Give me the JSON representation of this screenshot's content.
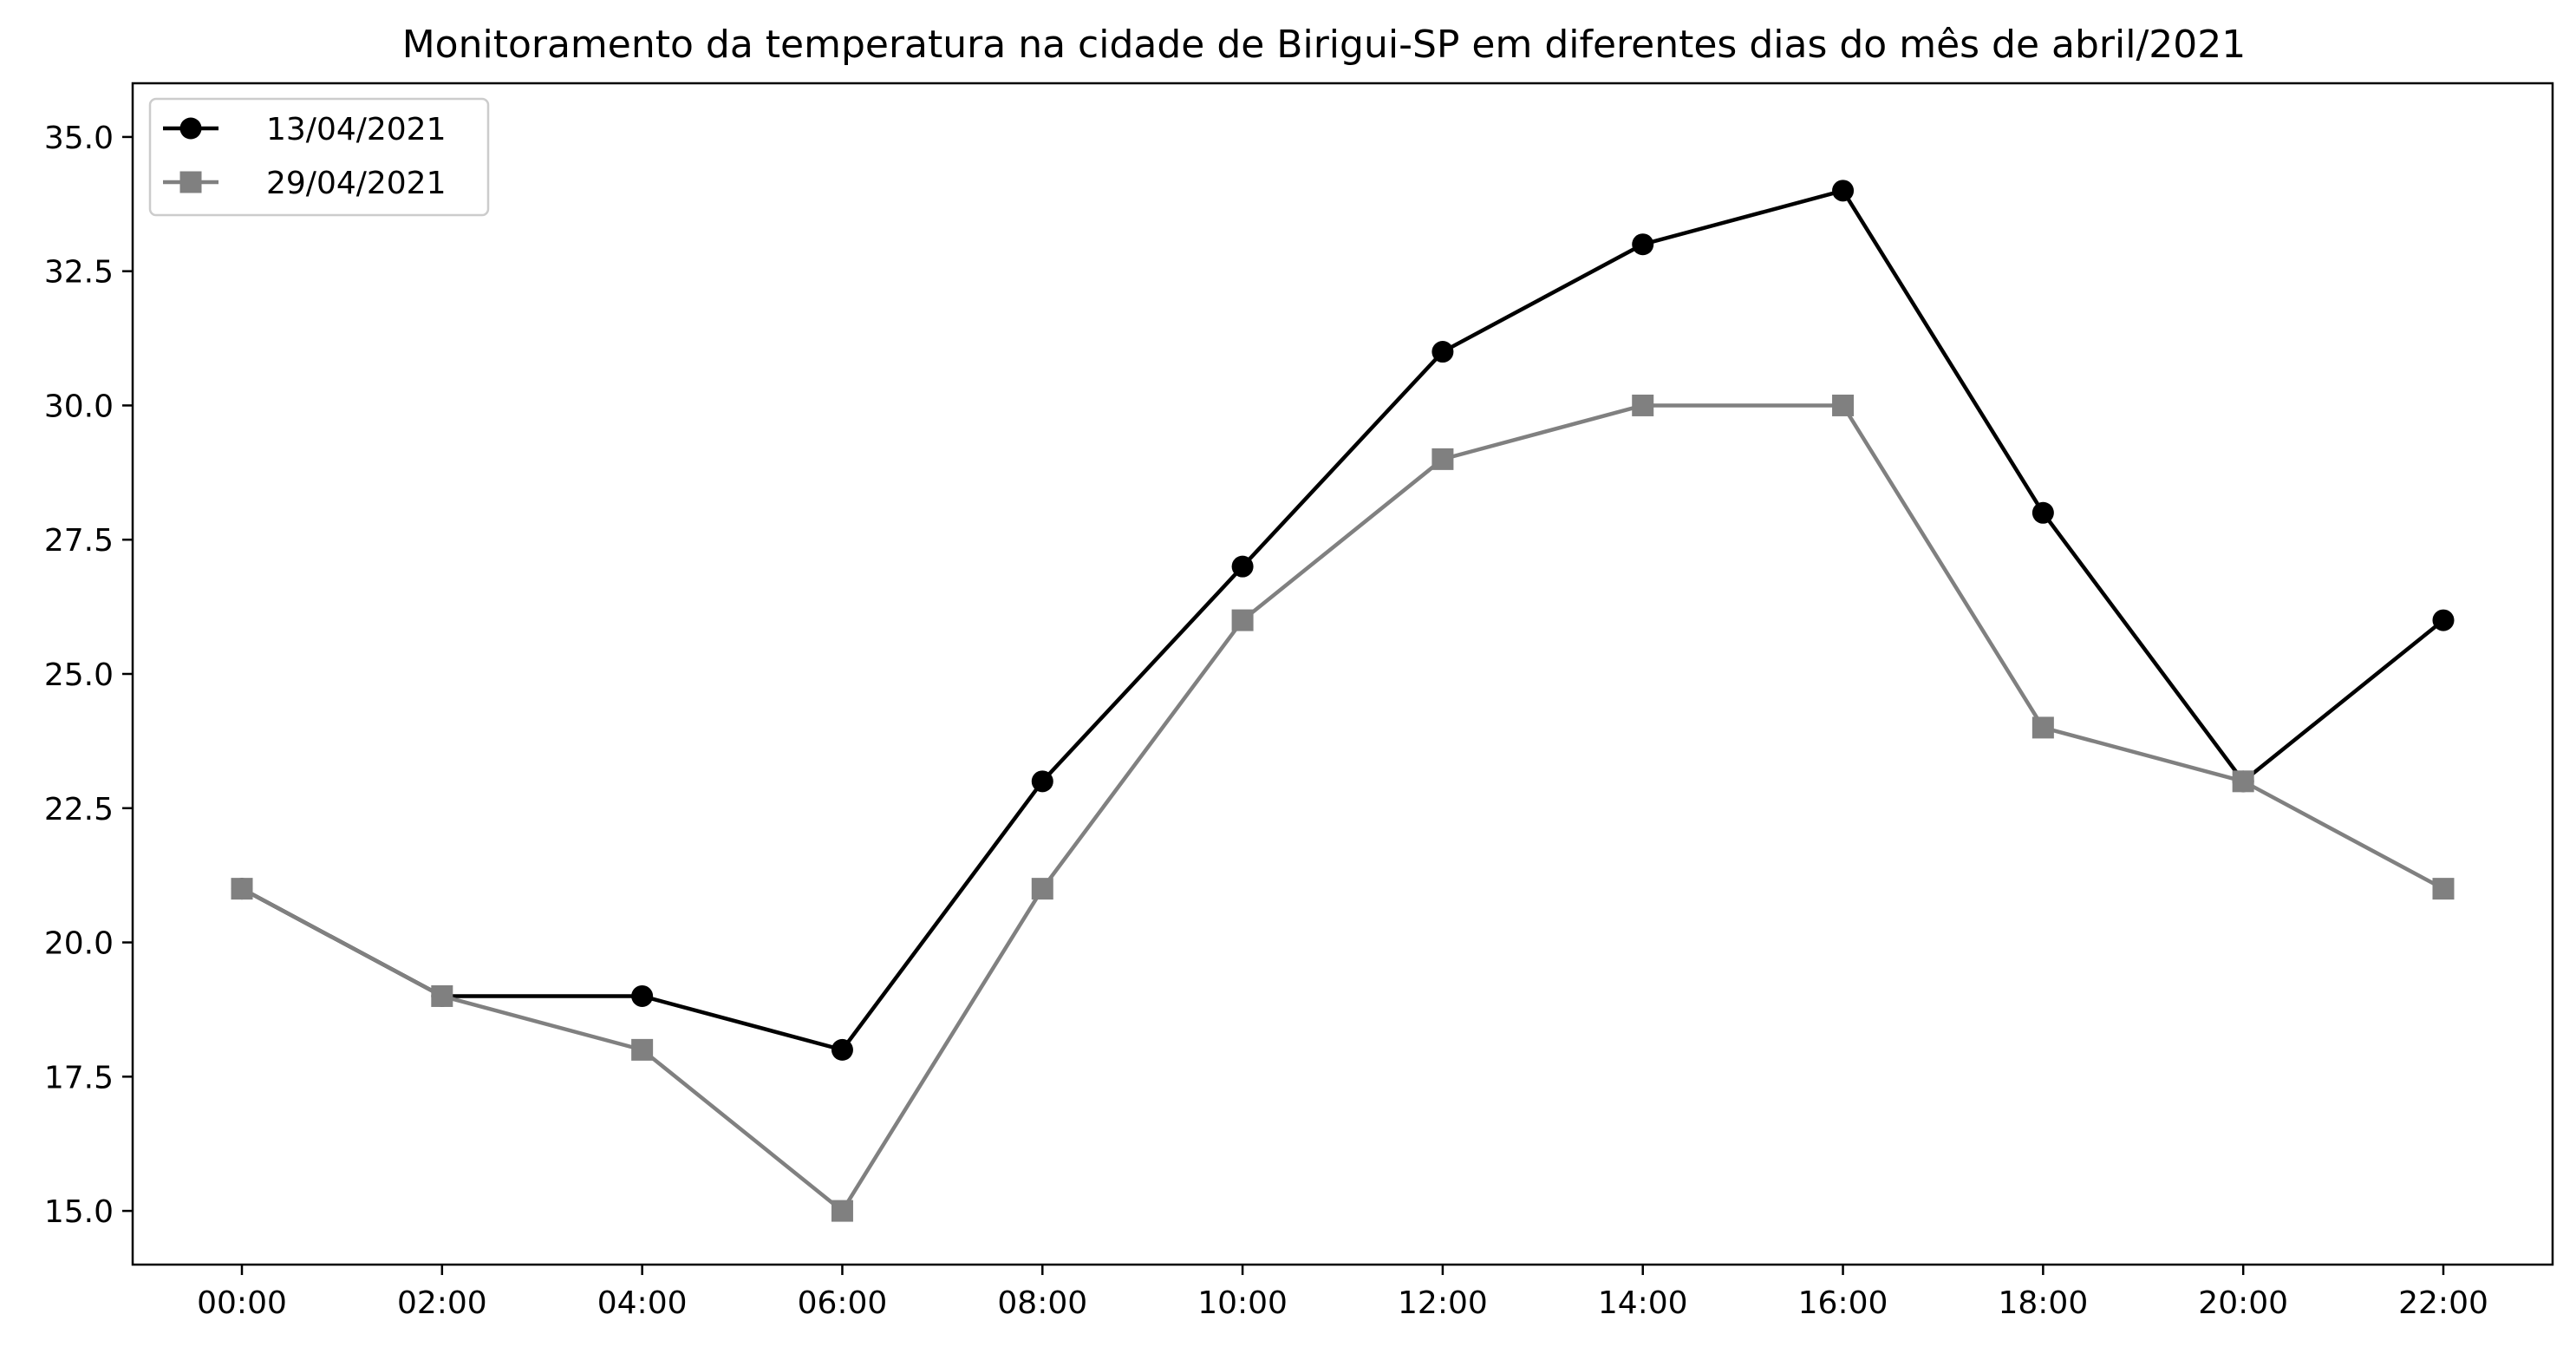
{
  "chart_data": {
    "type": "line",
    "title": "Monitoramento da temperatura na cidade de Birigui-SP em diferentes dias do mês de abril/2021",
    "xlabel": "",
    "ylabel": "",
    "categories": [
      "00:00",
      "02:00",
      "04:00",
      "06:00",
      "08:00",
      "10:00",
      "12:00",
      "14:00",
      "16:00",
      "18:00",
      "20:00",
      "22:00"
    ],
    "yticks": [
      "15.0",
      "17.5",
      "20.0",
      "22.5",
      "25.0",
      "27.5",
      "30.0",
      "32.5",
      "35.0"
    ],
    "ylim": [
      14,
      36
    ],
    "grid": false,
    "legend_position": "top-left",
    "series": [
      {
        "name": "13/04/2021",
        "values": [
          21,
          19,
          19,
          18,
          23,
          27,
          31,
          33,
          34,
          28,
          23,
          26
        ],
        "color": "#000000",
        "marker": "circle"
      },
      {
        "name": "29/04/2021",
        "values": [
          21,
          19,
          18,
          15,
          21,
          26,
          29,
          30,
          30,
          24,
          23,
          21
        ],
        "color": "#808080",
        "marker": "square"
      }
    ]
  }
}
